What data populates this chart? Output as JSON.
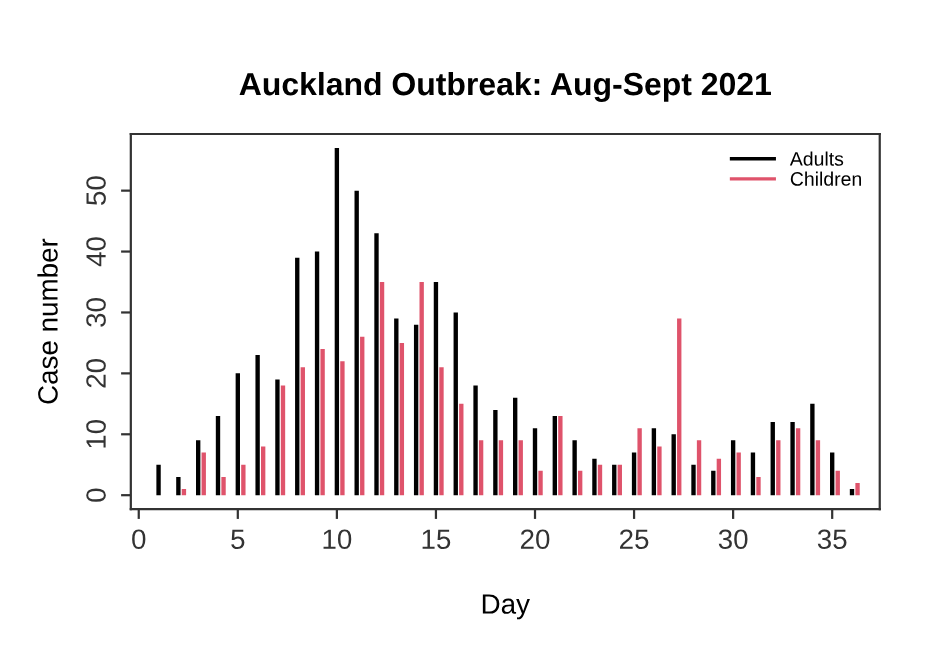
{
  "chart_data": {
    "type": "bar",
    "title": "Auckland Outbreak: Aug-Sept 2021",
    "xlabel": "Day",
    "ylabel": "Case number",
    "x": [
      1,
      2,
      3,
      4,
      5,
      6,
      7,
      8,
      9,
      10,
      11,
      12,
      13,
      14,
      15,
      16,
      17,
      18,
      19,
      20,
      21,
      22,
      23,
      24,
      25,
      26,
      27,
      28,
      29,
      30,
      31,
      32,
      33,
      34,
      35,
      36
    ],
    "series": [
      {
        "name": "Adults",
        "color": "#000000",
        "values": [
          5,
          3,
          9,
          13,
          20,
          23,
          19,
          39,
          40,
          57,
          50,
          43,
          29,
          28,
          35,
          30,
          18,
          14,
          16,
          11,
          13,
          9,
          6,
          5,
          7,
          11,
          10,
          5,
          4,
          9,
          7,
          12,
          12,
          15,
          7,
          1
        ]
      },
      {
        "name": "Children",
        "color": "#df536b",
        "values": [
          0,
          1,
          7,
          3,
          5,
          8,
          18,
          21,
          24,
          22,
          26,
          35,
          25,
          35,
          21,
          15,
          9,
          9,
          9,
          4,
          13,
          4,
          5,
          5,
          11,
          8,
          29,
          9,
          6,
          7,
          3,
          9,
          11,
          9,
          4,
          2
        ]
      }
    ],
    "xlim": [
      -0.4,
      37.4
    ],
    "ylim": [
      -2.3,
      59.3
    ],
    "xticks": [
      0,
      5,
      10,
      15,
      20,
      25,
      30,
      35
    ],
    "yticks": [
      0,
      10,
      20,
      30,
      40,
      50
    ],
    "legend": "top right",
    "grid": false
  }
}
